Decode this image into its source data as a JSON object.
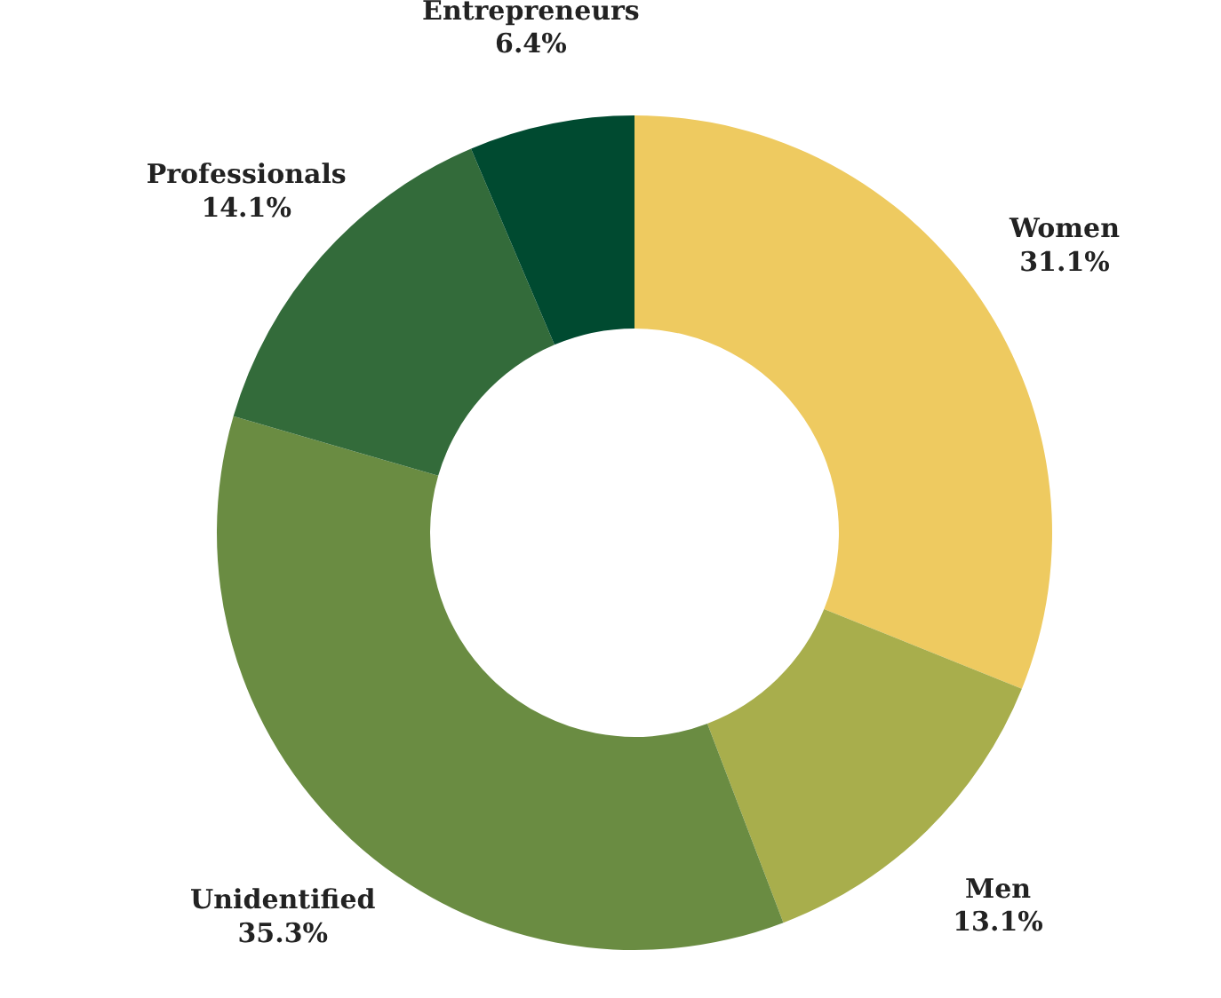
{
  "chart_data": {
    "type": "donut",
    "categories": [
      "Women",
      "Men",
      "Unidentified",
      "Professionals",
      "Entrepreneurs"
    ],
    "values": [
      31.1,
      13.1,
      35.3,
      14.1,
      6.4
    ],
    "colors": [
      "#eeca60",
      "#a8ae4c",
      "#6a8c42",
      "#336b3a",
      "#004a30"
    ],
    "value_labels": [
      "31.1%",
      "13.1%",
      "35.3%",
      "14.1%",
      "6.4%"
    ]
  }
}
